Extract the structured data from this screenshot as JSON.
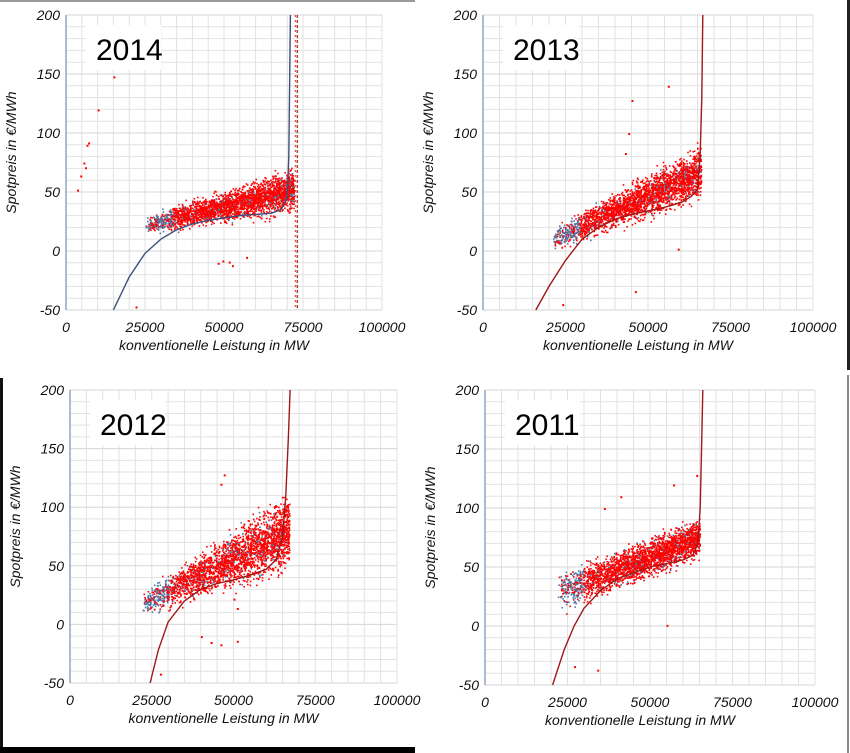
{
  "figure": {
    "description": "Spotpreis vs. konventionelle Leistung, four yearly scatter panels",
    "colors": {
      "scatter_primary": "#ff0000",
      "scatter_secondary": "#4a78a8",
      "fit_curve_2014": "#3b4f7a",
      "fit_curve_other": "#a01818",
      "capacity_line_2014": "#c0392b",
      "grid": "#e2e2e2"
    }
  },
  "chart_data": [
    {
      "type": "scatter",
      "title": "2014",
      "xlabel": "konventionelle Leistung in MW",
      "ylabel": "Spotpreis  in €/MWh",
      "xlim": [
        0,
        100000
      ],
      "ylim": [
        -50,
        200
      ],
      "xticks": [
        "0",
        "25000",
        "50000",
        "75000",
        "100000"
      ],
      "yticks": [
        "-50",
        "0",
        "50",
        "100",
        "150",
        "200"
      ],
      "grid": true,
      "fit_curve": {
        "x": [
          15000,
          20000,
          25000,
          30000,
          35000,
          40000,
          45000,
          50000,
          55000,
          60000,
          65000,
          68000,
          70000,
          70500,
          71000
        ],
        "y": [
          -50,
          -22,
          -2,
          10,
          18,
          23,
          26,
          28,
          30,
          31,
          32,
          35,
          45,
          80,
          200
        ]
      },
      "capacity_line_x": 73200,
      "scatter_cloud": {
        "x_range": [
          25000,
          72000
        ],
        "y_low_at_start": 12,
        "y_high_at_start": 32,
        "y_low_at_end": 30,
        "y_high_at_end": 75
      },
      "outliers": [
        [
          3500,
          52
        ],
        [
          4500,
          64
        ],
        [
          5500,
          75
        ],
        [
          6000,
          71
        ],
        [
          6500,
          90
        ],
        [
          7000,
          92
        ],
        [
          10000,
          120
        ],
        [
          15000,
          148
        ],
        [
          48000,
          -10
        ],
        [
          49500,
          -8
        ],
        [
          51500,
          -9
        ],
        [
          52500,
          -12
        ],
        [
          57000,
          -5
        ],
        [
          22000,
          -47
        ]
      ]
    },
    {
      "type": "scatter",
      "title": "2013",
      "xlabel": "konventionelle Leistung in MW",
      "ylabel": "Spotpreis  in €/MWh",
      "xlim": [
        0,
        100000
      ],
      "ylim": [
        -50,
        200
      ],
      "xticks": [
        "0",
        "25000",
        "50000",
        "75000",
        "100000"
      ],
      "yticks": [
        "-50",
        "0",
        "50",
        "100",
        "150",
        "200"
      ],
      "grid": true,
      "fit_curve": {
        "x": [
          16000,
          20000,
          25000,
          30000,
          35000,
          40000,
          45000,
          50000,
          55000,
          60000,
          63000,
          65000,
          65800,
          66300,
          66600
        ],
        "y": [
          -50,
          -30,
          -8,
          10,
          20,
          27,
          31,
          34,
          37,
          41,
          46,
          52,
          80,
          130,
          200
        ]
      },
      "scatter_cloud": {
        "x_range": [
          21000,
          66000
        ],
        "y_low_at_start": -2,
        "y_high_at_start": 22,
        "y_low_at_end": 40,
        "y_high_at_end": 95
      },
      "outliers": [
        [
          45000,
          128
        ],
        [
          56000,
          140
        ],
        [
          44000,
          100
        ],
        [
          43000,
          83
        ],
        [
          59000,
          2
        ],
        [
          46000,
          -34
        ],
        [
          24000,
          -45
        ]
      ]
    },
    {
      "type": "scatter",
      "title": "2012",
      "xlabel": "konventionelle Leistung in MW",
      "ylabel": "Spotpreis in €/MWh",
      "xlim": [
        0,
        100000
      ],
      "ylim": [
        -50,
        200
      ],
      "xticks": [
        "0",
        "25000",
        "50000",
        "75000",
        "100000"
      ],
      "yticks": [
        "-50",
        "0",
        "50",
        "100",
        "150",
        "200"
      ],
      "grid": true,
      "fit_curve": {
        "x": [
          24500,
          27000,
          30000,
          35000,
          40000,
          45000,
          50000,
          55000,
          60000,
          63000,
          65000,
          66000,
          66800,
          67300
        ],
        "y": [
          -50,
          -22,
          2,
          20,
          30,
          35,
          38,
          42,
          47,
          55,
          75,
          110,
          160,
          200
        ]
      },
      "scatter_cloud": {
        "x_range": [
          22000,
          67000
        ],
        "y_low_at_start": 5,
        "y_high_at_start": 30,
        "y_low_at_end": 40,
        "y_high_at_end": 120
      },
      "outliers": [
        [
          47000,
          128
        ],
        [
          46000,
          120
        ],
        [
          40000,
          -10
        ],
        [
          43000,
          -15
        ],
        [
          46000,
          -17
        ],
        [
          51000,
          -14
        ],
        [
          27500,
          -42
        ],
        [
          50000,
          22
        ],
        [
          51000,
          14
        ]
      ]
    },
    {
      "type": "scatter",
      "title": "2011",
      "xlabel": "konventionelle Leistung in MW",
      "ylabel": "Spotpreis  in €/MWh",
      "xlim": [
        0,
        100000
      ],
      "ylim": [
        -50,
        200
      ],
      "xticks": [
        "0",
        "25000",
        "50000",
        "75000",
        "100000"
      ],
      "yticks": [
        "-50",
        "0",
        "50",
        "100",
        "150",
        "200"
      ],
      "grid": true,
      "fit_curve": {
        "x": [
          20500,
          24000,
          27000,
          30000,
          35000,
          40000,
          45000,
          50000,
          55000,
          60000,
          63000,
          64500,
          65200,
          65700,
          66000
        ],
        "y": [
          -50,
          -20,
          0,
          15,
          30,
          40,
          45,
          50,
          53,
          56,
          60,
          70,
          100,
          160,
          200
        ]
      },
      "scatter_cloud": {
        "x_range": [
          22000,
          65000
        ],
        "y_low_at_start": 8,
        "y_high_at_start": 48,
        "y_low_at_end": 55,
        "y_high_at_end": 95
      },
      "outliers": [
        [
          36000,
          100
        ],
        [
          41000,
          110
        ],
        [
          57000,
          120
        ],
        [
          64000,
          128
        ],
        [
          55000,
          1
        ],
        [
          27000,
          -34
        ],
        [
          34000,
          -37
        ]
      ]
    }
  ]
}
